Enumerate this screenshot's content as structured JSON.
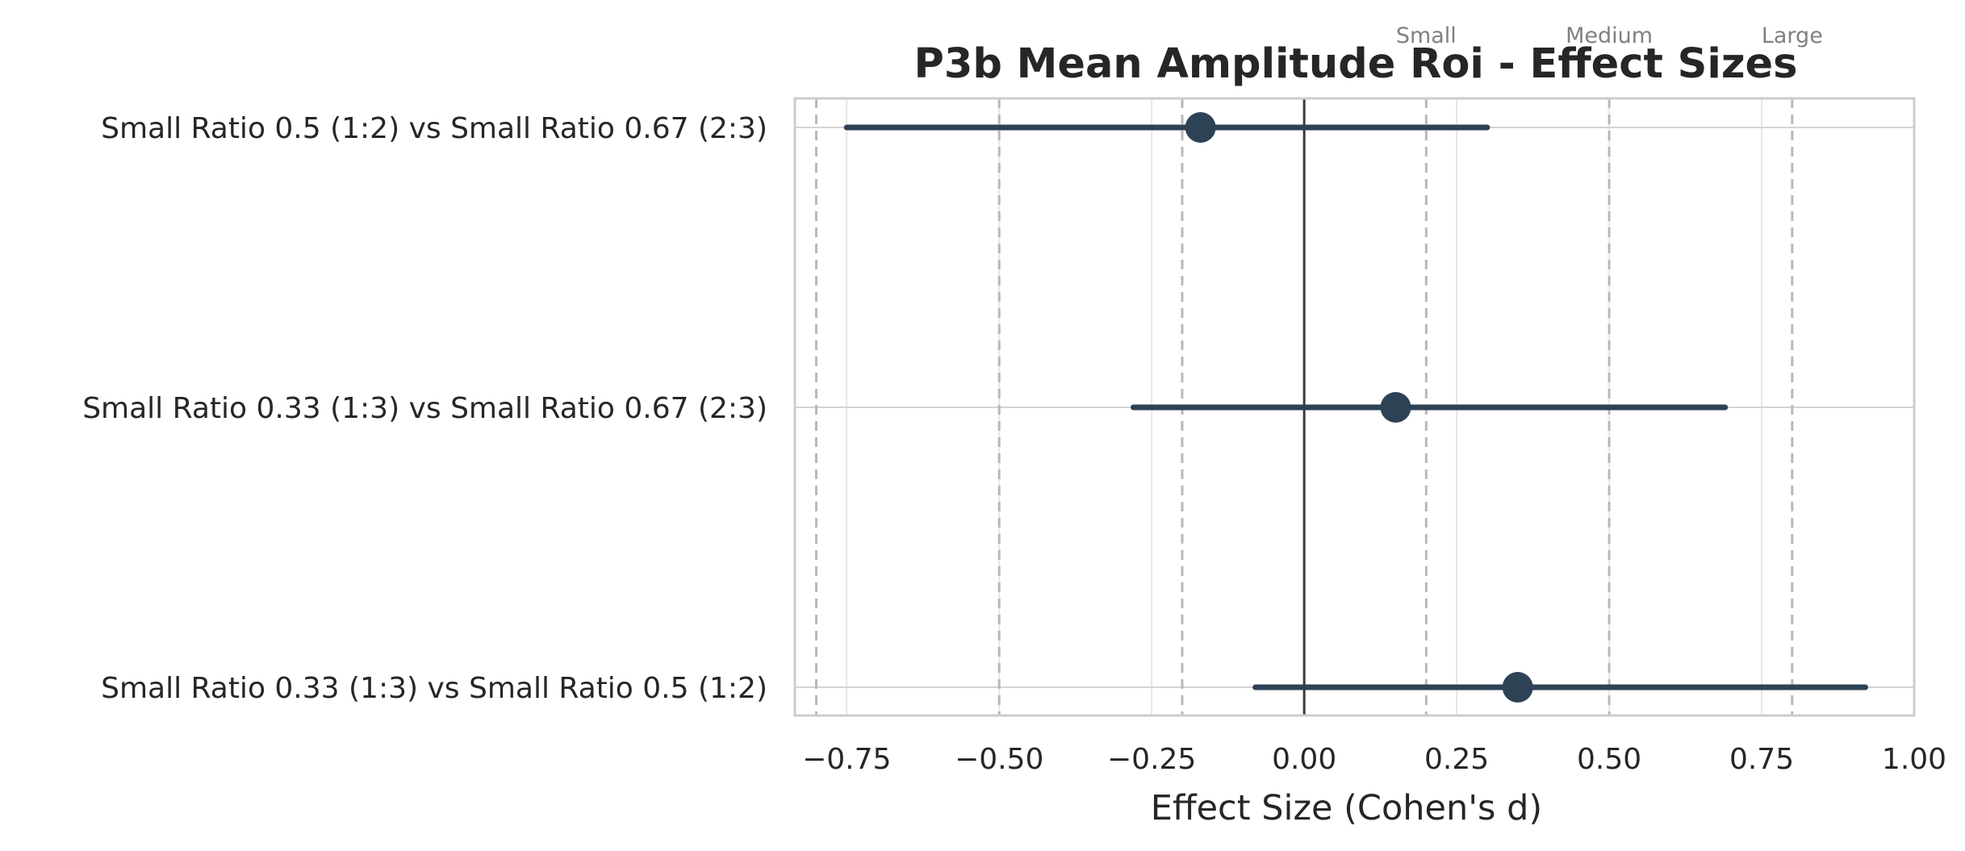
{
  "chart_data": {
    "type": "forest",
    "title": "P3b Mean Amplitude Roi - Effect Sizes",
    "xlabel": "Effect Size (Cohen's d)",
    "ylabel": "",
    "xlim": [
      -0.835,
      1.0
    ],
    "xticks": [
      -0.75,
      -0.5,
      -0.25,
      0.0,
      0.25,
      0.5,
      0.75,
      1.0
    ],
    "xtick_labels": [
      "−0.75",
      "−0.50",
      "−0.25",
      "0.00",
      "0.25",
      "0.50",
      "0.75",
      "1.00"
    ],
    "grid": true,
    "zero_line": 0.0,
    "reference_lines": [
      {
        "value": -0.8
      },
      {
        "value": -0.5
      },
      {
        "value": -0.2
      },
      {
        "value": 0.2,
        "label": "Small"
      },
      {
        "value": 0.5,
        "label": "Medium"
      },
      {
        "value": 0.8,
        "label": "Large"
      }
    ],
    "comparisons": [
      {
        "label": "Small Ratio 0.5 (1:2) vs Small Ratio 0.67 (2:3)",
        "d": -0.17,
        "ci_low": -0.75,
        "ci_high": 0.3
      },
      {
        "label": "Small Ratio 0.33 (1:3) vs Small Ratio 0.67 (2:3)",
        "d": 0.15,
        "ci_low": -0.28,
        "ci_high": 0.69
      },
      {
        "label": "Small Ratio 0.33 (1:3) vs Small Ratio 0.5 (1:2)",
        "d": 0.35,
        "ci_low": -0.08,
        "ci_high": 0.92
      }
    ],
    "colors": {
      "point": "#2e4256",
      "grid": "#e6e6e6",
      "reference": "#b8b8b8",
      "zero": "#3a3a3a",
      "frame": "#cccccc"
    }
  }
}
